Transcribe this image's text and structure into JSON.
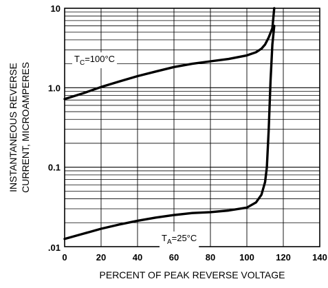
{
  "chart_data": {
    "type": "line",
    "xlabel": "PERCENT OF PEAK REVERSE VOLTAGE",
    "ylabel_lines": [
      "INSTANTANEOUS REVERSE",
      "CURRENT, MICROAMPERES"
    ],
    "x_scale": "linear",
    "y_scale": "log",
    "xlim": [
      0,
      140
    ],
    "ylim": [
      0.01,
      10
    ],
    "grid": true,
    "x_ticks": [
      0,
      20,
      40,
      60,
      80,
      100,
      120,
      140
    ],
    "x_tick_labels": [
      "0",
      "20",
      "40",
      "60",
      "80",
      "100",
      "120",
      "140"
    ],
    "y_ticks": [
      0.01,
      0.1,
      1.0,
      10
    ],
    "y_tick_labels": [
      ".01",
      "0.1",
      "1.0",
      "10"
    ],
    "series": [
      {
        "name": "TC = 100°C",
        "label_main": "T",
        "label_sub": "C",
        "label_rest": "=100°C",
        "x": [
          0,
          10,
          20,
          30,
          40,
          50,
          60,
          70,
          80,
          90,
          100,
          105,
          108,
          110,
          112,
          113,
          114,
          115
        ],
        "y": [
          0.72,
          0.85,
          1.02,
          1.2,
          1.4,
          1.6,
          1.82,
          2.0,
          2.15,
          2.3,
          2.55,
          2.8,
          3.1,
          3.5,
          4.3,
          4.9,
          5.6,
          10
        ]
      },
      {
        "name": "TA = 25°C",
        "label_main": "T",
        "label_sub": "A",
        "label_rest": "=25°C",
        "x": [
          0,
          10,
          20,
          30,
          40,
          50,
          60,
          70,
          80,
          90,
          100,
          105,
          108,
          110,
          111,
          112,
          113,
          114,
          115
        ],
        "y": [
          0.0125,
          0.0145,
          0.0168,
          0.019,
          0.0212,
          0.0232,
          0.025,
          0.0265,
          0.0272,
          0.0285,
          0.031,
          0.036,
          0.045,
          0.065,
          0.1,
          0.3,
          1.2,
          3.5,
          6
        ]
      }
    ]
  }
}
